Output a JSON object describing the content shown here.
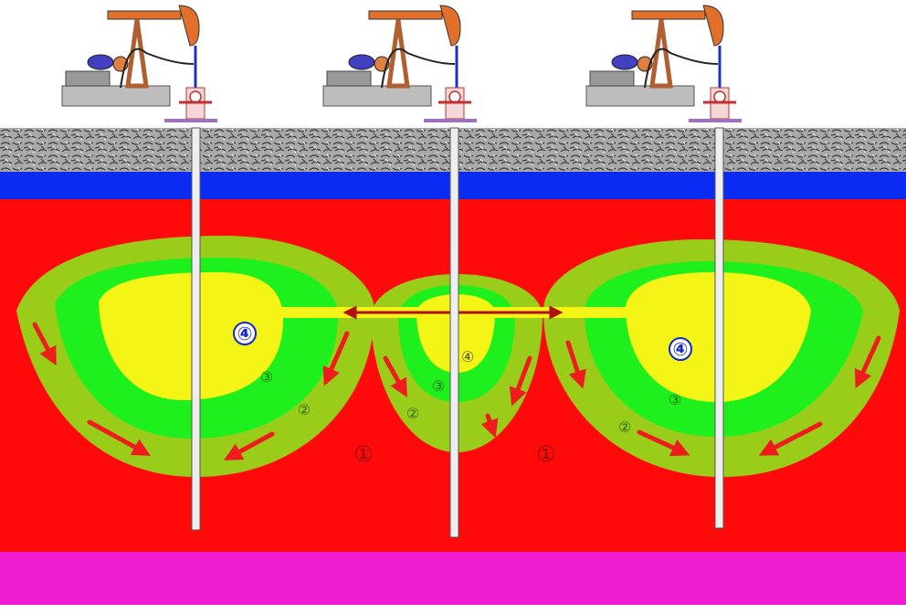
{
  "colors": {
    "background": "#ffffff",
    "gravel_layer": "#9a9a9a",
    "caprock_layer": "#0a2bf2",
    "reservoir": "#ff0a0a",
    "base_layer": "#f01cd2",
    "zone_2_olive": "#9acd1a",
    "zone_3_green": "#1ef01e",
    "zone_4_yellow": "#f4f416",
    "arrow_red": "#ee1c1c",
    "label_blue": "#1428c8",
    "label_dark_red": "#8a1010",
    "label_dark_green": "#2a6a10"
  },
  "icons": [
    "pump-jack-icon",
    "wellhead-icon",
    "wellbore",
    "flow-arrow"
  ],
  "labels": {
    "well_left_zone4": "④",
    "well_left_zone3": "③",
    "well_left_zone2": "②",
    "well_mid_zone4": "④",
    "well_mid_zone3": "③",
    "well_mid_zone2": "②",
    "well_right_zone4": "④",
    "well_right_zone3": "③",
    "well_right_zone2": "②",
    "zone1_left": "①",
    "zone1_right": "①"
  }
}
